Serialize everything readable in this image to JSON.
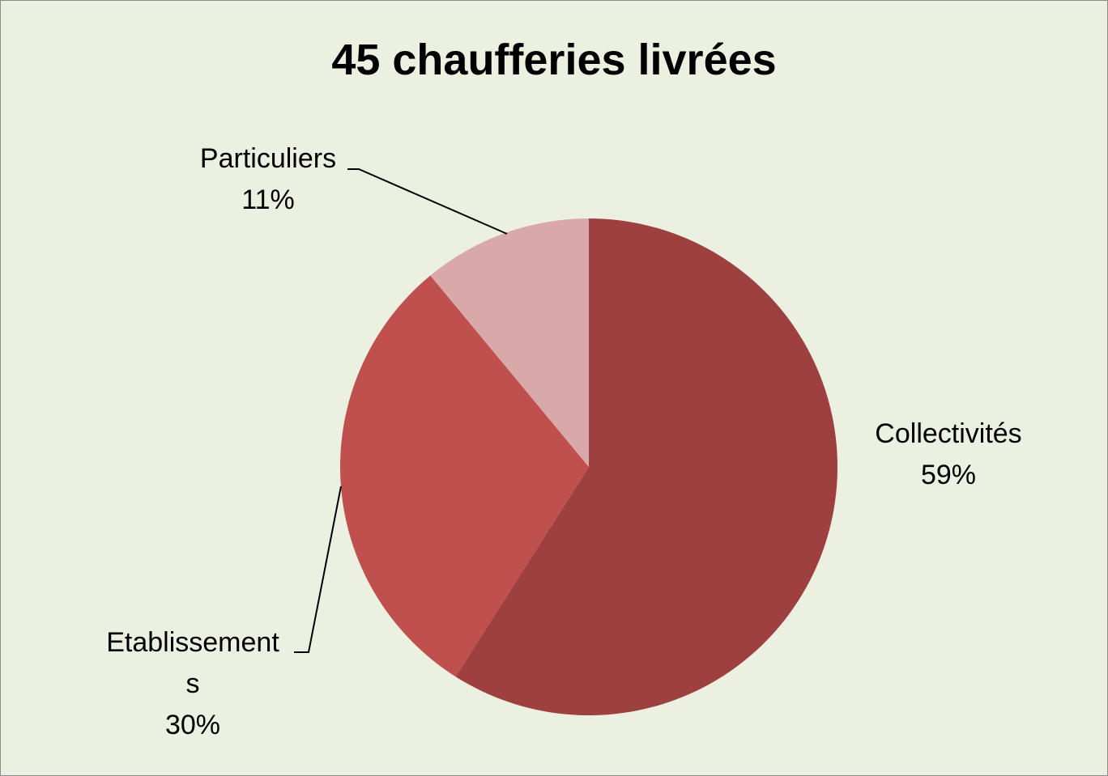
{
  "chart_data": {
    "type": "pie",
    "title": "45 chaufferies livrées",
    "categories": [
      "Collectivités",
      "Etablissements",
      "Particuliers"
    ],
    "values": [
      59,
      30,
      11
    ],
    "value_labels": [
      "59%",
      "30%",
      "11%"
    ],
    "colors": [
      "#9e4040",
      "#c0504d",
      "#d9a8a8"
    ]
  }
}
